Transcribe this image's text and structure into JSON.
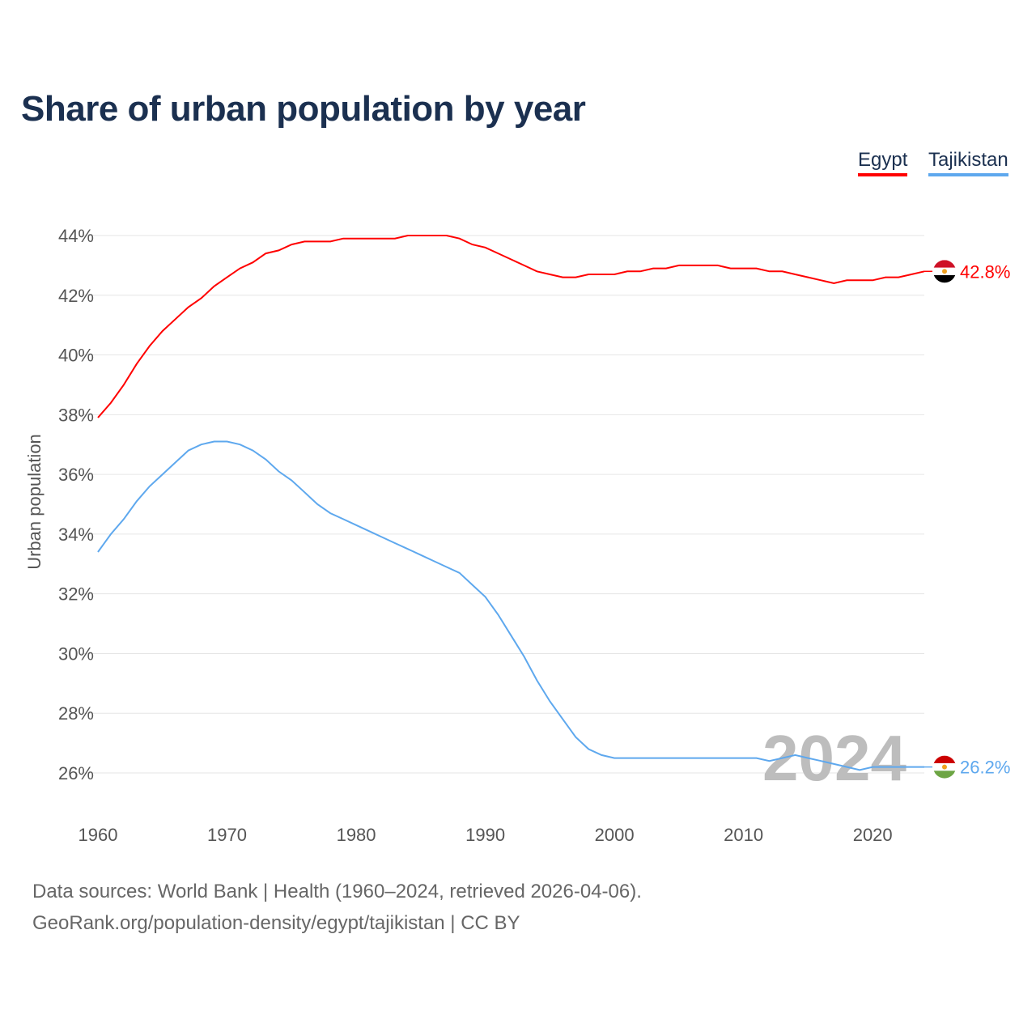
{
  "chart_data": {
    "type": "line",
    "title": "Share of urban population by year",
    "xlabel": "",
    "ylabel": "Urban population",
    "xlim": [
      1960,
      2024
    ],
    "ylim": [
      26,
      44
    ],
    "x_ticks": [
      "1960",
      "1970",
      "1980",
      "1990",
      "2000",
      "2010",
      "2020"
    ],
    "y_ticks": [
      "26%",
      "28%",
      "30%",
      "32%",
      "34%",
      "36%",
      "38%",
      "40%",
      "42%",
      "44%"
    ],
    "grid": true,
    "legend_position": "top-right",
    "watermark_year": "2024",
    "x": [
      1960,
      1961,
      1962,
      1963,
      1964,
      1965,
      1966,
      1967,
      1968,
      1969,
      1970,
      1971,
      1972,
      1973,
      1974,
      1975,
      1976,
      1977,
      1978,
      1979,
      1980,
      1981,
      1982,
      1983,
      1984,
      1985,
      1986,
      1987,
      1988,
      1989,
      1990,
      1991,
      1992,
      1993,
      1994,
      1995,
      1996,
      1997,
      1998,
      1999,
      2000,
      2001,
      2002,
      2003,
      2004,
      2005,
      2006,
      2007,
      2008,
      2009,
      2010,
      2011,
      2012,
      2013,
      2014,
      2015,
      2016,
      2017,
      2018,
      2019,
      2020,
      2021,
      2022,
      2023,
      2024
    ],
    "series": [
      {
        "name": "Egypt",
        "color": "#ff0000",
        "end_label": "42.8%",
        "values": [
          37.9,
          38.4,
          39.0,
          39.7,
          40.3,
          40.8,
          41.2,
          41.6,
          41.9,
          42.3,
          42.6,
          42.9,
          43.1,
          43.4,
          43.5,
          43.7,
          43.8,
          43.8,
          43.8,
          43.9,
          43.9,
          43.9,
          43.9,
          43.9,
          44.0,
          44.0,
          44.0,
          44.0,
          43.9,
          43.7,
          43.6,
          43.4,
          43.2,
          43.0,
          42.8,
          42.7,
          42.6,
          42.6,
          42.7,
          42.7,
          42.7,
          42.8,
          42.8,
          42.9,
          42.9,
          43.0,
          43.0,
          43.0,
          43.0,
          42.9,
          42.9,
          42.9,
          42.8,
          42.8,
          42.7,
          42.6,
          42.5,
          42.4,
          42.5,
          42.5,
          42.5,
          42.6,
          42.6,
          42.7,
          42.8
        ]
      },
      {
        "name": "Tajikistan",
        "color": "#5ea8ee",
        "end_label": "26.2%",
        "values": [
          33.4,
          34.0,
          34.5,
          35.1,
          35.6,
          36.0,
          36.4,
          36.8,
          37.0,
          37.1,
          37.1,
          37.0,
          36.8,
          36.5,
          36.1,
          35.8,
          35.4,
          35.0,
          34.7,
          34.5,
          34.3,
          34.1,
          33.9,
          33.7,
          33.5,
          33.3,
          33.1,
          32.9,
          32.7,
          32.3,
          31.9,
          31.3,
          30.6,
          29.9,
          29.1,
          28.4,
          27.8,
          27.2,
          26.8,
          26.6,
          26.5,
          26.5,
          26.5,
          26.5,
          26.5,
          26.5,
          26.5,
          26.5,
          26.5,
          26.5,
          26.5,
          26.5,
          26.4,
          26.5,
          26.6,
          26.5,
          26.4,
          26.3,
          26.2,
          26.1,
          26.2,
          26.2,
          26.2,
          26.2,
          26.2
        ]
      }
    ]
  },
  "footer": {
    "line1": "Data sources: World Bank | Health (1960–2024, retrieved 2026-04-06).",
    "line2": "GeoRank.org/population-density/egypt/tajikistan | CC BY"
  }
}
